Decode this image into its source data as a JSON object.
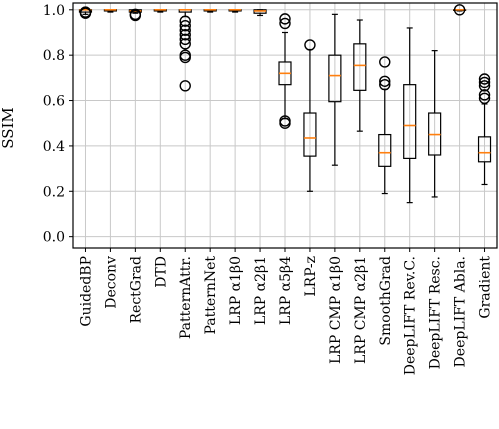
{
  "chart_data": {
    "type": "boxplot",
    "ylabel": "SSIM",
    "ylim": [
      -0.05,
      1.03
    ],
    "yticks": [
      0.0,
      0.2,
      0.4,
      0.6,
      0.8,
      1.0
    ],
    "ytick_labels": [
      "0.0",
      "0.2",
      "0.4",
      "0.6",
      "0.8",
      "1.0"
    ],
    "grid": true,
    "colors": {
      "median": "#ff7f0e",
      "box": "#000000",
      "grid": "#c8c8c8"
    },
    "categories": [
      "GuidedBP",
      "Deconv",
      "RectGrad",
      "DTD",
      "PatternAttr.",
      "PatternNet",
      "LRP α1β0",
      "LRP α2β1",
      "LRP α5β4",
      "LRP-z",
      "LRP CMP α1β0",
      "LRP CMP α2β1",
      "SmoothGrad",
      "DeepLIFT Rev.C.",
      "DeepLIFT Resc.",
      "DeepLIFT Abla.",
      "Gradient"
    ],
    "boxes": [
      {
        "whislo": 0.98,
        "q1": 0.99,
        "med": 1.0,
        "q3": 1.0,
        "whishi": 1.0,
        "fliers": [
          0.985,
          0.99
        ]
      },
      {
        "whislo": 0.99,
        "q1": 0.995,
        "med": 1.0,
        "q3": 1.0,
        "whishi": 1.0,
        "fliers": []
      },
      {
        "whislo": 0.985,
        "q1": 0.99,
        "med": 0.995,
        "q3": 1.0,
        "whishi": 1.0,
        "fliers": [
          0.975,
          0.98
        ]
      },
      {
        "whislo": 0.99,
        "q1": 0.995,
        "med": 1.0,
        "q3": 1.0,
        "whishi": 1.0,
        "fliers": []
      },
      {
        "whislo": 0.97,
        "q1": 0.99,
        "med": 1.0,
        "q3": 1.0,
        "whishi": 1.0,
        "fliers": [
          0.95,
          0.93,
          0.91,
          0.89,
          0.87,
          0.85,
          0.8,
          0.79,
          0.665
        ]
      },
      {
        "whislo": 0.99,
        "q1": 0.995,
        "med": 1.0,
        "q3": 1.0,
        "whishi": 1.0,
        "fliers": []
      },
      {
        "whislo": 0.99,
        "q1": 0.995,
        "med": 1.0,
        "q3": 1.0,
        "whishi": 1.0,
        "fliers": []
      },
      {
        "whislo": 0.975,
        "q1": 0.985,
        "med": 0.995,
        "q3": 1.0,
        "whishi": 1.0,
        "fliers": []
      },
      {
        "whislo": 0.52,
        "q1": 0.67,
        "med": 0.72,
        "q3": 0.77,
        "whishi": 0.9,
        "fliers": [
          0.96,
          0.94,
          0.51,
          0.5
        ]
      },
      {
        "whislo": 0.2,
        "q1": 0.355,
        "med": 0.435,
        "q3": 0.545,
        "whishi": 0.825,
        "fliers": [
          0.845
        ]
      },
      {
        "whislo": 0.315,
        "q1": 0.595,
        "med": 0.71,
        "q3": 0.8,
        "whishi": 0.98,
        "fliers": []
      },
      {
        "whislo": 0.465,
        "q1": 0.645,
        "med": 0.755,
        "q3": 0.85,
        "whishi": 0.955,
        "fliers": []
      },
      {
        "whislo": 0.19,
        "q1": 0.31,
        "med": 0.37,
        "q3": 0.45,
        "whishi": 0.65,
        "fliers": [
          0.77,
          0.685,
          0.67
        ]
      },
      {
        "whislo": 0.15,
        "q1": 0.345,
        "med": 0.49,
        "q3": 0.67,
        "whishi": 0.92,
        "fliers": []
      },
      {
        "whislo": 0.175,
        "q1": 0.36,
        "med": 0.45,
        "q3": 0.545,
        "whishi": 0.82,
        "fliers": []
      },
      {
        "whislo": 0.995,
        "q1": 0.998,
        "med": 1.0,
        "q3": 1.0,
        "whishi": 1.0,
        "fliers": [
          1.0
        ]
      },
      {
        "whislo": 0.23,
        "q1": 0.33,
        "med": 0.37,
        "q3": 0.44,
        "whishi": 0.585,
        "fliers": [
          0.695,
          0.68,
          0.665,
          0.625,
          0.61
        ]
      }
    ]
  }
}
